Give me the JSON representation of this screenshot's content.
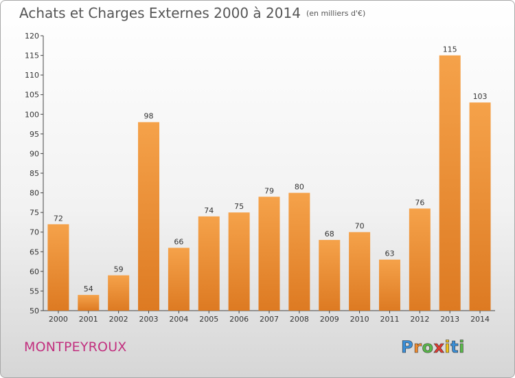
{
  "header": {
    "title": "Achats et Charges Externes 2000 à 2014",
    "unit": "(en milliers d'€)"
  },
  "footer": {
    "city": "MONTPEYROUX",
    "logo_letters": [
      "P",
      "r",
      "o",
      "x",
      "i",
      "t",
      "i"
    ],
    "logo_colors": [
      "#3a8fd8",
      "#f08a2c",
      "#58b848",
      "#e03c31",
      "#f2c418",
      "#3a8fd8",
      "#58b848"
    ]
  },
  "chart_data": {
    "type": "bar",
    "title": "Achats et Charges Externes 2000 à 2014",
    "subtitle": "(en milliers d'€)",
    "categories": [
      "2000",
      "2001",
      "2002",
      "2003",
      "2004",
      "2005",
      "2006",
      "2007",
      "2008",
      "2009",
      "2010",
      "2011",
      "2012",
      "2013",
      "2014"
    ],
    "values": [
      72,
      54,
      59,
      98,
      66,
      74,
      75,
      79,
      80,
      68,
      70,
      63,
      76,
      115,
      103
    ],
    "ylim": [
      50,
      120
    ],
    "yticks": [
      50,
      55,
      60,
      65,
      70,
      75,
      80,
      85,
      90,
      95,
      100,
      105,
      110,
      115,
      120
    ],
    "grid": false,
    "bar_color": "#f09a3e",
    "bar_color_dark": "#d9731a",
    "data_labels": true
  }
}
